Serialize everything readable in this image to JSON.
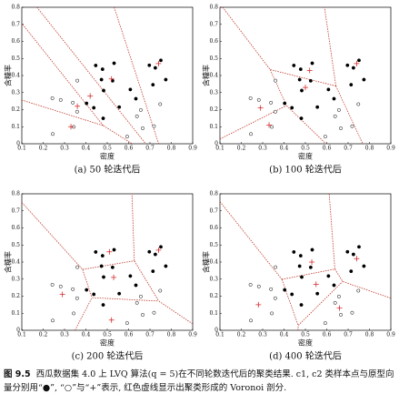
{
  "chart_data": [
    {
      "type": "scatter",
      "caption": "(a) 50 轮迭代后",
      "xlabel": "密度",
      "ylabel": "含糖率",
      "xlim": [
        0.1,
        0.9
      ],
      "ylim": [
        0,
        0.8
      ],
      "xticks": [
        0.1,
        0.2,
        0.3,
        0.4,
        0.5,
        0.6,
        0.7,
        0.8,
        0.9
      ],
      "yticks": [
        0,
        0.1,
        0.2,
        0.3,
        0.4,
        0.5,
        0.6,
        0.7,
        0.8
      ],
      "boundary_color": "#c0392b",
      "series": [
        {
          "marker": "filled",
          "color": "#000000",
          "x": [
            0.697,
            0.774,
            0.634,
            0.608,
            0.556,
            0.403,
            0.481,
            0.437,
            0.714,
            0.483,
            0.478,
            0.525,
            0.751,
            0.532,
            0.473,
            0.725,
            0.446
          ],
          "values": [
            0.46,
            0.376,
            0.264,
            0.318,
            0.215,
            0.237,
            0.149,
            0.211,
            0.346,
            0.312,
            0.437,
            0.369,
            0.489,
            0.472,
            0.376,
            0.445,
            0.459
          ]
        },
        {
          "marker": "open",
          "color": "#000000",
          "x": [
            0.666,
            0.243,
            0.245,
            0.343,
            0.639,
            0.657,
            0.36,
            0.593,
            0.719,
            0.359,
            0.339,
            0.282,
            0.748
          ],
          "values": [
            0.091,
            0.267,
            0.057,
            0.099,
            0.161,
            0.198,
            0.37,
            0.042,
            0.103,
            0.188,
            0.241,
            0.257,
            0.232
          ]
        },
        {
          "marker": "plus",
          "color": "#d62728",
          "x": [
            0.33,
            0.42,
            0.52,
            0.74,
            0.36
          ],
          "values": [
            0.1,
            0.28,
            0.38,
            0.47,
            0.22
          ]
        }
      ]
    },
    {
      "type": "scatter",
      "caption": "(b) 100 轮迭代后",
      "xlabel": "密度",
      "ylabel": "含糖率",
      "xlim": [
        0.1,
        0.9
      ],
      "ylim": [
        0,
        0.8
      ],
      "xticks": [
        0.1,
        0.2,
        0.3,
        0.4,
        0.5,
        0.6,
        0.7,
        0.8,
        0.9
      ],
      "yticks": [
        0,
        0.1,
        0.2,
        0.3,
        0.4,
        0.5,
        0.6,
        0.7,
        0.8
      ],
      "boundary_color": "#c0392b",
      "series": [
        {
          "marker": "filled",
          "color": "#000000",
          "x": [
            0.697,
            0.774,
            0.634,
            0.608,
            0.556,
            0.403,
            0.481,
            0.437,
            0.714,
            0.483,
            0.478,
            0.525,
            0.751,
            0.532,
            0.473,
            0.725,
            0.446
          ],
          "values": [
            0.46,
            0.376,
            0.264,
            0.318,
            0.215,
            0.237,
            0.149,
            0.211,
            0.346,
            0.312,
            0.437,
            0.369,
            0.489,
            0.472,
            0.376,
            0.445,
            0.459
          ]
        },
        {
          "marker": "open",
          "color": "#000000",
          "x": [
            0.666,
            0.243,
            0.245,
            0.343,
            0.639,
            0.657,
            0.36,
            0.593,
            0.719,
            0.359,
            0.339,
            0.282,
            0.748
          ],
          "values": [
            0.091,
            0.267,
            0.057,
            0.099,
            0.161,
            0.198,
            0.37,
            0.042,
            0.103,
            0.188,
            0.241,
            0.257,
            0.232
          ]
        },
        {
          "marker": "plus",
          "color": "#d62728",
          "x": [
            0.33,
            0.29,
            0.5,
            0.74,
            0.52
          ],
          "values": [
            0.11,
            0.21,
            0.33,
            0.47,
            0.43
          ]
        }
      ]
    },
    {
      "type": "scatter",
      "caption": "(c) 200 轮迭代后",
      "xlabel": "密度",
      "ylabel": "含糖率",
      "xlim": [
        0.1,
        0.9
      ],
      "ylim": [
        0,
        0.8
      ],
      "xticks": [
        0.1,
        0.2,
        0.3,
        0.4,
        0.5,
        0.6,
        0.7,
        0.8,
        0.9
      ],
      "yticks": [
        0,
        0.1,
        0.2,
        0.3,
        0.4,
        0.5,
        0.6,
        0.7,
        0.8
      ],
      "boundary_color": "#c0392b",
      "series": [
        {
          "marker": "filled",
          "color": "#000000",
          "x": [
            0.697,
            0.774,
            0.634,
            0.608,
            0.556,
            0.403,
            0.481,
            0.437,
            0.714,
            0.483,
            0.478,
            0.525,
            0.751,
            0.532,
            0.473,
            0.725,
            0.446
          ],
          "values": [
            0.46,
            0.376,
            0.264,
            0.318,
            0.215,
            0.237,
            0.149,
            0.211,
            0.346,
            0.312,
            0.437,
            0.369,
            0.489,
            0.472,
            0.376,
            0.445,
            0.459
          ]
        },
        {
          "marker": "open",
          "color": "#000000",
          "x": [
            0.666,
            0.243,
            0.245,
            0.343,
            0.639,
            0.657,
            0.36,
            0.593,
            0.719,
            0.359,
            0.339,
            0.282,
            0.748
          ],
          "values": [
            0.091,
            0.267,
            0.057,
            0.099,
            0.161,
            0.198,
            0.37,
            0.042,
            0.103,
            0.188,
            0.241,
            0.257,
            0.232
          ]
        },
        {
          "marker": "plus",
          "color": "#d62728",
          "x": [
            0.52,
            0.29,
            0.53,
            0.74,
            0.51
          ],
          "values": [
            0.06,
            0.21,
            0.31,
            0.47,
            0.46
          ]
        }
      ]
    },
    {
      "type": "scatter",
      "caption": "(d) 400 轮迭代后",
      "xlabel": "密度",
      "ylabel": "含糖率",
      "xlim": [
        0.1,
        0.9
      ],
      "ylim": [
        0,
        0.8
      ],
      "xticks": [
        0.1,
        0.2,
        0.3,
        0.4,
        0.5,
        0.6,
        0.7,
        0.8,
        0.9
      ],
      "yticks": [
        0,
        0.1,
        0.2,
        0.3,
        0.4,
        0.5,
        0.6,
        0.7,
        0.8
      ],
      "boundary_color": "#c0392b",
      "series": [
        {
          "marker": "filled",
          "color": "#000000",
          "x": [
            0.697,
            0.774,
            0.634,
            0.608,
            0.556,
            0.403,
            0.481,
            0.437,
            0.714,
            0.483,
            0.478,
            0.525,
            0.751,
            0.532,
            0.473,
            0.725,
            0.446
          ],
          "values": [
            0.46,
            0.376,
            0.264,
            0.318,
            0.215,
            0.237,
            0.149,
            0.211,
            0.346,
            0.312,
            0.437,
            0.369,
            0.489,
            0.472,
            0.376,
            0.445,
            0.459
          ]
        },
        {
          "marker": "open",
          "color": "#000000",
          "x": [
            0.666,
            0.243,
            0.245,
            0.343,
            0.639,
            0.657,
            0.36,
            0.593,
            0.719,
            0.359,
            0.339,
            0.282,
            0.748
          ],
          "values": [
            0.091,
            0.267,
            0.057,
            0.099,
            0.161,
            0.198,
            0.37,
            0.042,
            0.103,
            0.188,
            0.241,
            0.257,
            0.232
          ]
        },
        {
          "marker": "plus",
          "color": "#d62728",
          "x": [
            0.66,
            0.28,
            0.55,
            0.74,
            0.53
          ],
          "values": [
            0.13,
            0.15,
            0.27,
            0.42,
            0.4
          ]
        }
      ]
    }
  ],
  "figure_caption": {
    "label": "图 9.5",
    "text": "西瓜数据集 4.0 上 LVQ 算法(q = 5)在不同轮数迭代后的聚类结果. c1, c2 类样本点与原型向量分别用“●”, “○”与“+”表示, 红色虚线显示出聚类形成的 Voronoi 剖分."
  }
}
